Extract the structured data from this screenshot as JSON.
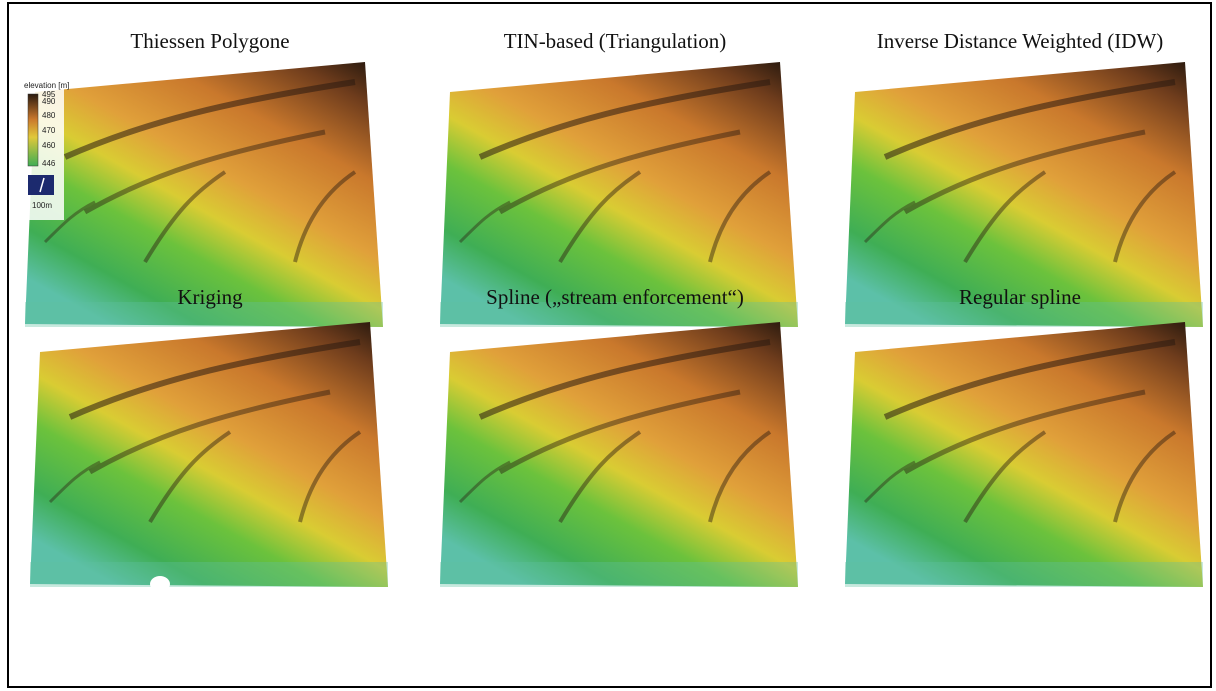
{
  "panels": [
    {
      "title": "Thiessen Polygone"
    },
    {
      "title": "TIN-based (Triangulation)"
    },
    {
      "title": "Inverse Distance Weighted (IDW)"
    },
    {
      "title": "Kriging"
    },
    {
      "title": "Spline („stream enforcement“)"
    },
    {
      "title": "Regular spline"
    }
  ],
  "legend": {
    "title": "elevation [m]",
    "ticks": [
      "495",
      "490",
      "480",
      "470",
      "460",
      "446"
    ],
    "scale": "100m"
  }
}
